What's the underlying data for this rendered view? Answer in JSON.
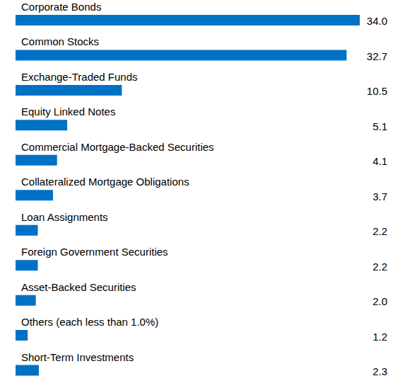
{
  "chart_data": {
    "type": "bar",
    "orientation": "horizontal",
    "categories": [
      "Corporate Bonds",
      "Common Stocks",
      "Exchange-Traded Funds",
      "Equity Linked Notes",
      "Commercial Mortgage-Backed Securities",
      "Collateralized Mortgage Obligations",
      "Loan Assignments",
      "Foreign Government Securities",
      "Asset-Backed Securities",
      "Others (each less than 1.0%)",
      "Short-Term Investments"
    ],
    "values": [
      34.0,
      32.7,
      10.5,
      5.1,
      4.1,
      3.7,
      2.2,
      2.2,
      2.0,
      1.2,
      2.3
    ],
    "value_labels": [
      "34.0",
      "32.7",
      "10.5",
      "5.1",
      "4.1",
      "3.7",
      "2.2",
      "2.2",
      "2.0",
      "1.2",
      "2.3"
    ],
    "color": "#0072c6",
    "xlim": [
      0,
      34
    ],
    "data_labels": true,
    "tick_labels": false,
    "grid": false
  }
}
